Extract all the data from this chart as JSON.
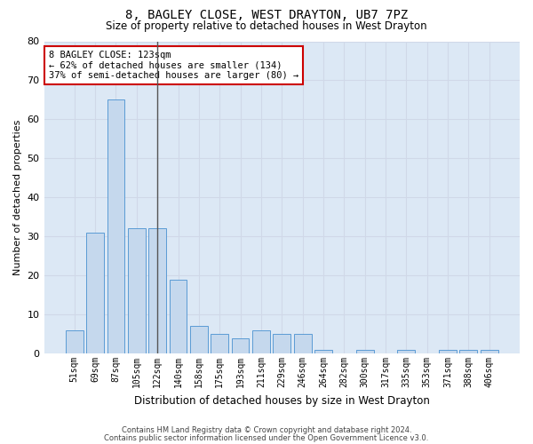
{
  "title": "8, BAGLEY CLOSE, WEST DRAYTON, UB7 7PZ",
  "subtitle": "Size of property relative to detached houses in West Drayton",
  "xlabel": "Distribution of detached houses by size in West Drayton",
  "ylabel": "Number of detached properties",
  "categories": [
    "51sqm",
    "69sqm",
    "87sqm",
    "105sqm",
    "122sqm",
    "140sqm",
    "158sqm",
    "175sqm",
    "193sqm",
    "211sqm",
    "229sqm",
    "246sqm",
    "264sqm",
    "282sqm",
    "300sqm",
    "317sqm",
    "335sqm",
    "353sqm",
    "371sqm",
    "388sqm",
    "406sqm"
  ],
  "values": [
    6,
    31,
    65,
    32,
    32,
    19,
    7,
    5,
    4,
    6,
    5,
    5,
    1,
    0,
    1,
    0,
    1,
    0,
    1,
    1,
    1
  ],
  "bar_color": "#c5d8ed",
  "bar_edge_color": "#5b9bd5",
  "highlight_index": 4,
  "highlight_line_color": "#555555",
  "ylim": [
    0,
    80
  ],
  "yticks": [
    0,
    10,
    20,
    30,
    40,
    50,
    60,
    70,
    80
  ],
  "annotation_text": "8 BAGLEY CLOSE: 123sqm\n← 62% of detached houses are smaller (134)\n37% of semi-detached houses are larger (80) →",
  "annotation_box_color": "#ffffff",
  "annotation_box_edge": "#cc0000",
  "footer_line1": "Contains HM Land Registry data © Crown copyright and database right 2024.",
  "footer_line2": "Contains public sector information licensed under the Open Government Licence v3.0.",
  "grid_color": "#d0d8e8",
  "bg_color": "#ffffff",
  "plot_bg_color": "#dce8f5"
}
